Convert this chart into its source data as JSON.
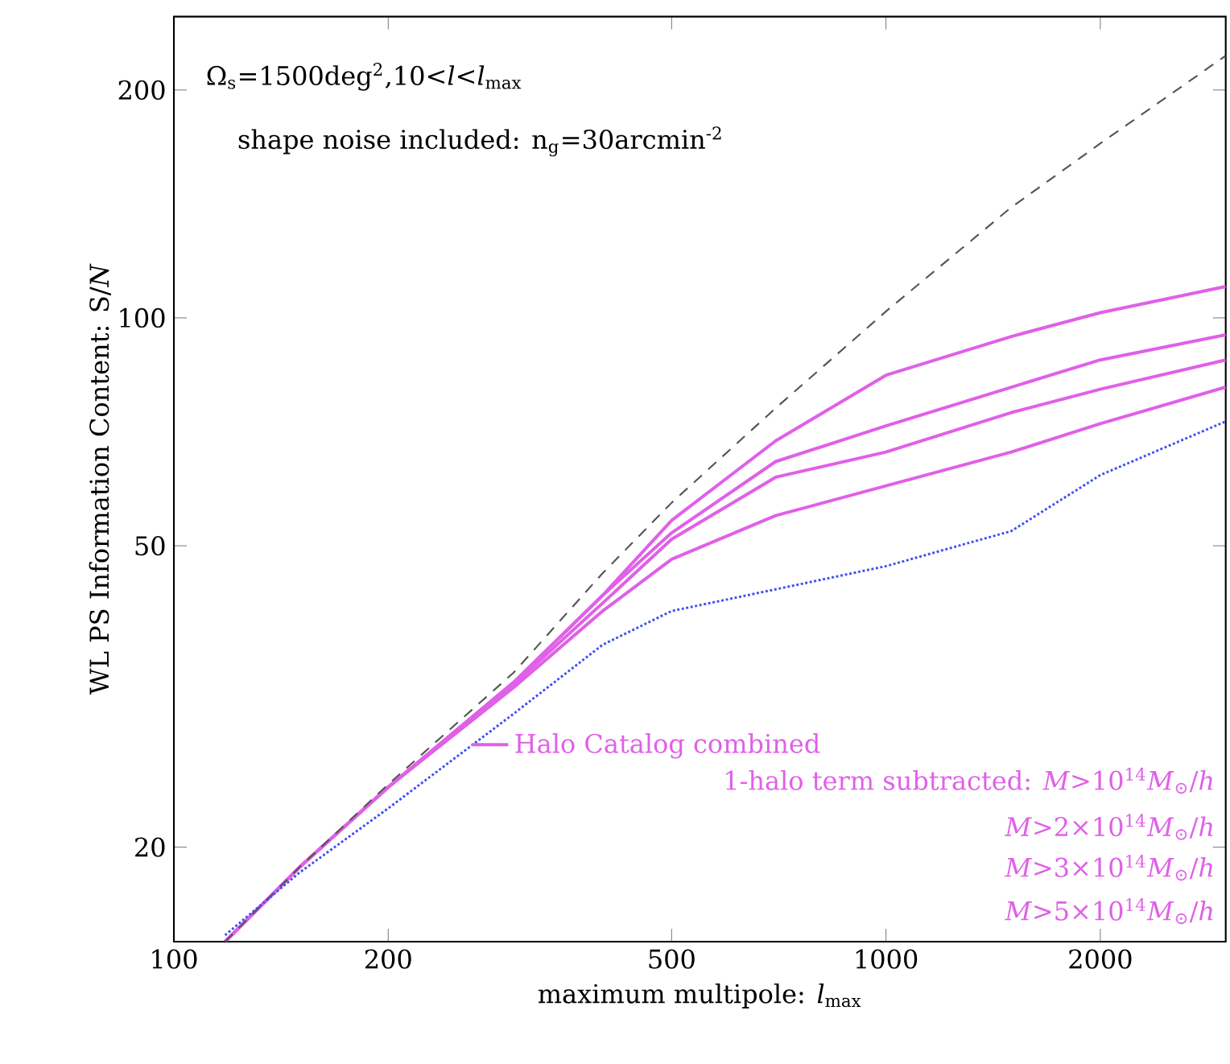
{
  "chart_data": {
    "type": "line",
    "xlabel": "maximum multipole: *l*$_{max}$",
    "ylabel": "WL PS Information Content: S/*N*",
    "log": "xy",
    "grid": false,
    "legend": "bottom",
    "xlim": [
      100,
      3000
    ],
    "ylim": [
      15,
      250
    ],
    "xticks": [
      100,
      200,
      500,
      1000,
      2000
    ],
    "yticks": [
      20,
      50,
      100,
      200
    ],
    "annotations": [
      "Ω$_{s}$=1500deg$^{2}$,10<*l*<*l*$_{max}$",
      "shape noise included: n$_{g}$=30arcmin$^{-2}$",
      "1-halo term subtracted: *M*>10$^{14}$*M*$_{⊙}$/*h*",
      "*M*>2×10$^{14}$*M*$_{⊙}$/*h*",
      "*M*>3×10$^{14}$*M*$_{⊙}$/*h*",
      "*M*>5×10$^{14}$*M*$_{⊙}$/*h*"
    ],
    "x": [
      118,
      150,
      200,
      300,
      400,
      500,
      700,
      1000,
      1500,
      2000,
      3000
    ],
    "series": [
      {
        "name": "Halo Catalog combined",
        "color": "#e060e8",
        "line_style": "solid",
        "values": [
          15,
          18.8,
          24,
          33,
          43,
          54,
          68.8,
          84,
          94.5,
          101.6,
          110
        ]
      },
      {
        "color": "#e060e8",
        "line_style": "solid",
        "values": [
          15,
          18.8,
          24,
          33,
          43,
          52,
          64.6,
          72,
          81,
          88,
          95
        ]
      },
      {
        "color": "#e060e8",
        "line_style": "solid",
        "values": [
          15,
          18.8,
          24,
          32.8,
          42,
          51,
          61.6,
          66.5,
          75,
          80.5,
          88
        ]
      },
      {
        "color": "#e060e8",
        "line_style": "solid",
        "values": [
          15,
          18.8,
          24,
          32.5,
          41,
          48,
          54.8,
          60,
          66.5,
          72.5,
          81
        ]
      },
      {
        "color": "#555555",
        "line_style": "dashed",
        "values": [
          15,
          18.8,
          24.2,
          34,
          46,
          57,
          76,
          102,
          140,
          170,
          222
        ]
      },
      {
        "color": "#4050f0",
        "line_style": "dotted",
        "values": [
          15.3,
          18.5,
          22.5,
          30,
          37,
          41,
          43.8,
          47,
          52.3,
          62,
          73
        ]
      }
    ]
  }
}
